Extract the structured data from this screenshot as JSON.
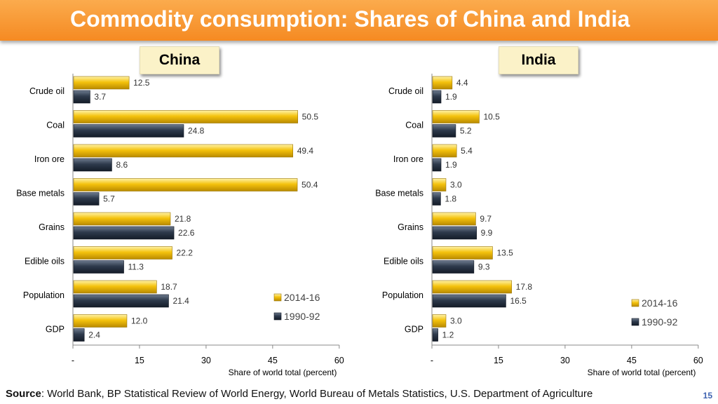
{
  "title": "Commodity consumption: Shares of China and India",
  "source_label": "Source",
  "source_text": ": World Bank, BP Statistical Review of World Energy, World Bureau of Metals Statistics, U.S. Department of Agriculture",
  "page_number": "15",
  "colors": {
    "series_2014": "#f4c20d",
    "series_1990": "#2e3a4c",
    "title_bar": "#f7941e"
  },
  "chart_data": [
    {
      "type": "bar",
      "title": "China",
      "categories": [
        "Crude oil",
        "Coal",
        "Iron ore",
        "Base metals",
        "Grains",
        "Edible oils",
        "Population",
        "GDP"
      ],
      "series": [
        {
          "name": "2014-16",
          "values": [
            12.5,
            50.5,
            49.4,
            50.4,
            21.8,
            22.2,
            18.7,
            12.0
          ],
          "labels": [
            "12.5",
            "50.5",
            "49.4",
            "50.4",
            "21.8",
            "22.2",
            "18.7",
            "12.0"
          ]
        },
        {
          "name": "1990-92",
          "values": [
            3.7,
            24.8,
            8.6,
            5.7,
            22.6,
            11.3,
            21.4,
            2.4
          ],
          "labels": [
            "3.7",
            "24.8",
            "8.6",
            "5.7",
            "22.6",
            "11.3",
            "21.4",
            "2.4"
          ]
        }
      ],
      "xlim": [
        0,
        60
      ],
      "xticks": [
        "-",
        "15",
        "30",
        "45",
        "60"
      ],
      "xlabel": "Share of world total (percent)",
      "legend_position": "right"
    },
    {
      "type": "bar",
      "title": "India",
      "categories": [
        "Crude oil",
        "Coal",
        "Iron ore",
        "Base metals",
        "Grains",
        "Edible oils",
        "Population",
        "GDP"
      ],
      "series": [
        {
          "name": "2014-16",
          "values": [
            4.4,
            10.5,
            5.4,
            3.0,
            9.7,
            13.5,
            17.8,
            3.0
          ],
          "labels": [
            "4.4",
            "10.5",
            "5.4",
            "3.0",
            "9.7",
            "13.5",
            "17.8",
            "3.0"
          ]
        },
        {
          "name": "1990-92",
          "values": [
            1.9,
            5.2,
            1.9,
            1.8,
            9.9,
            9.3,
            16.5,
            1.2
          ],
          "labels": [
            "1.9",
            "5.2",
            "1.9",
            "1.8",
            "9.9",
            "9.3",
            "16.5",
            "1.2"
          ]
        }
      ],
      "xlim": [
        0,
        60
      ],
      "xticks": [
        "-",
        "15",
        "30",
        "45",
        "60"
      ],
      "xlabel": "Share of world total (percent)",
      "legend_position": "right"
    }
  ]
}
